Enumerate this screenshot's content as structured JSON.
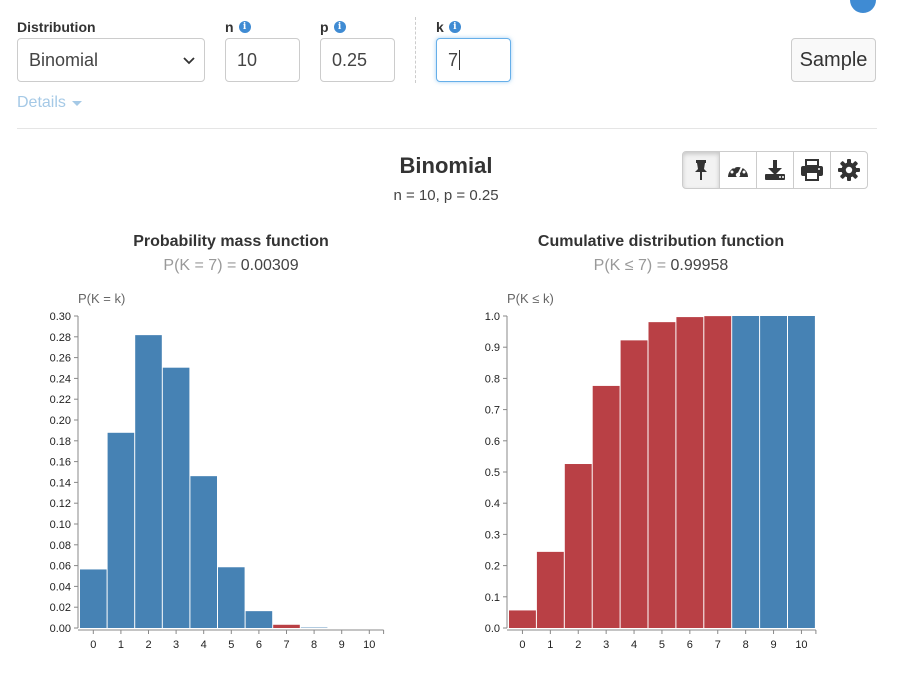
{
  "form": {
    "distribution": {
      "label": "Distribution",
      "value": "Binomial"
    },
    "n": {
      "label": "n",
      "value": "10"
    },
    "p": {
      "label": "p",
      "value": "0.25"
    },
    "k": {
      "label": "k",
      "value": "7"
    },
    "sample_label": "Sample",
    "details_label": "Details"
  },
  "header": {
    "title": "Binomial",
    "params": "n = 10, p = 0.25"
  },
  "toolbar": {
    "buttons": [
      "pin-icon",
      "dashboard-icon",
      "download-icon",
      "print-icon",
      "gear-icon"
    ]
  },
  "colors": {
    "blue": "#4682b4",
    "red": "#b94045",
    "accent": "#3f8bd3"
  },
  "pmf": {
    "title": "Probability mass function",
    "subtitle_expr": "P(K = 7) = ",
    "subtitle_value": "0.00309"
  },
  "cdf": {
    "title": "Cumulative distribution function",
    "subtitle_expr": "P(K ≤ 7) = ",
    "subtitle_value": "0.99958"
  },
  "chart_data": [
    {
      "type": "bar",
      "title": "Probability mass function",
      "ylabel": "P(K = k)",
      "xlabel": "",
      "categories": [
        "0",
        "1",
        "2",
        "3",
        "4",
        "5",
        "6",
        "7",
        "8",
        "9",
        "10"
      ],
      "values": [
        0.0563,
        0.1877,
        0.2816,
        0.2503,
        0.146,
        0.0584,
        0.0162,
        0.0031,
        0.0004,
        0.0,
        0.0
      ],
      "highlight": [
        7
      ],
      "ylim": [
        0,
        0.3
      ],
      "yticks": [
        "0.00",
        "0.02",
        "0.04",
        "0.06",
        "0.08",
        "0.10",
        "0.12",
        "0.14",
        "0.16",
        "0.18",
        "0.20",
        "0.22",
        "0.24",
        "0.26",
        "0.28",
        "0.30"
      ]
    },
    {
      "type": "bar",
      "title": "Cumulative distribution function",
      "ylabel": "P(K ≤ k)",
      "xlabel": "",
      "categories": [
        "0",
        "1",
        "2",
        "3",
        "4",
        "5",
        "6",
        "7",
        "8",
        "9",
        "10"
      ],
      "values": [
        0.0563,
        0.244,
        0.5256,
        0.7759,
        0.9219,
        0.9803,
        0.9965,
        0.9996,
        1.0,
        1.0,
        1.0
      ],
      "highlight": [
        0,
        1,
        2,
        3,
        4,
        5,
        6,
        7
      ],
      "ylim": [
        0,
        1.0
      ],
      "yticks": [
        "0.0",
        "0.1",
        "0.2",
        "0.3",
        "0.4",
        "0.5",
        "0.6",
        "0.7",
        "0.8",
        "0.9",
        "1.0"
      ]
    }
  ]
}
